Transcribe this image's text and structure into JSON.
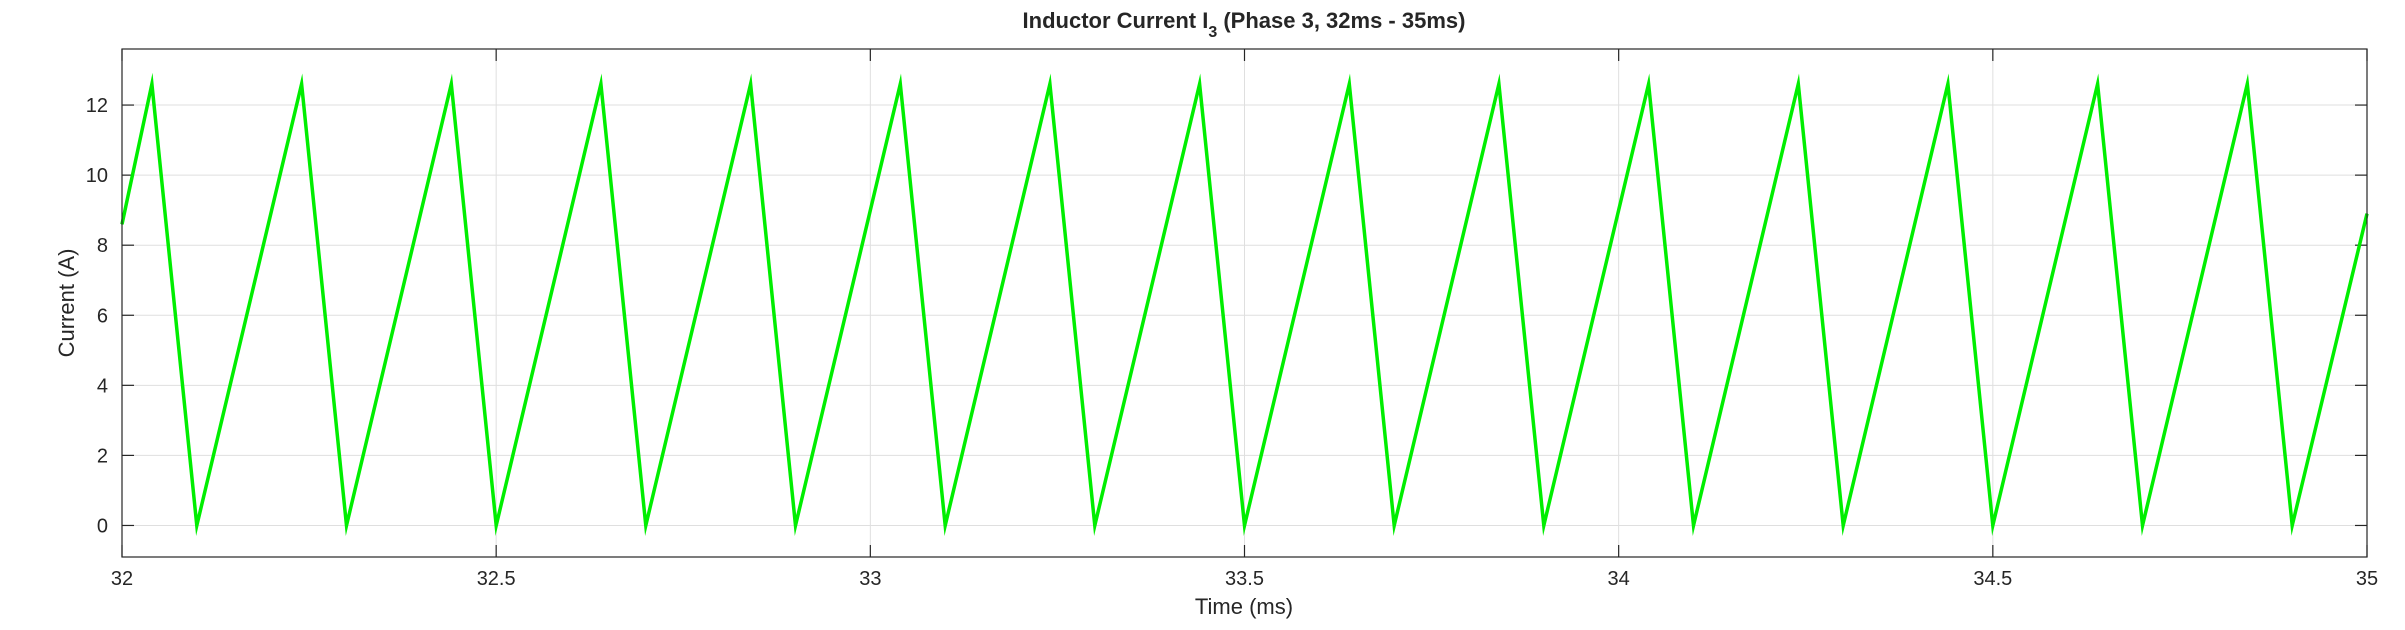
{
  "chart_data": {
    "type": "line",
    "title": "Inductor Current I",
    "title_subscript": "3",
    "title_suffix": " (Phase 3, 32ms - 35ms)",
    "xlabel": "Time (ms)",
    "ylabel": "Current (A)",
    "xlim": [
      32,
      35
    ],
    "ylim": [
      -0.9,
      13.6
    ],
    "xticks": [
      32,
      32.5,
      33,
      33.5,
      34,
      34.5,
      35
    ],
    "xtick_labels": [
      "32",
      "32.5",
      "33",
      "33.5",
      "34",
      "34.5",
      "35"
    ],
    "yticks": [
      0,
      2,
      4,
      6,
      8,
      10,
      12
    ],
    "ytick_labels": [
      "0",
      "2",
      "4",
      "6",
      "8",
      "10",
      "12"
    ],
    "grid": true,
    "series": [
      {
        "color": "#00ee00",
        "x": [
          32.0,
          32.04,
          32.1,
          32.24,
          32.3,
          32.44,
          32.5,
          32.64,
          32.7,
          32.84,
          32.9,
          33.04,
          33.1,
          33.24,
          33.3,
          33.44,
          33.5,
          33.64,
          33.7,
          33.84,
          33.9,
          34.04,
          34.1,
          34.24,
          34.3,
          34.44,
          34.5,
          34.64,
          34.7,
          34.84,
          34.9,
          35.0
        ],
        "y": [
          8.6,
          12.6,
          0.0,
          12.6,
          0.0,
          12.6,
          0.0,
          12.6,
          0.0,
          12.6,
          0.0,
          12.6,
          0.0,
          12.6,
          0.0,
          12.6,
          0.0,
          12.6,
          0.0,
          12.6,
          0.0,
          12.6,
          0.0,
          12.6,
          0.0,
          12.6,
          0.0,
          12.6,
          0.0,
          12.6,
          0.0,
          8.9
        ]
      }
    ]
  }
}
